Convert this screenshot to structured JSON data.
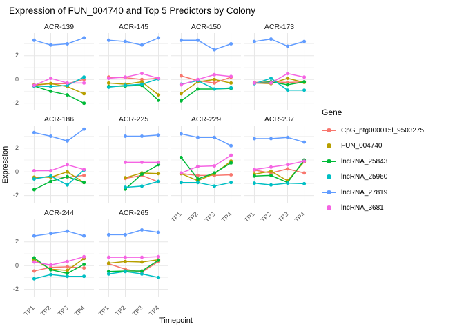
{
  "title": "Expression of FUN_004740 and Top 5 Predictors by Colony",
  "axes": {
    "x_title": "Timepoint",
    "y_title": "Expression",
    "x_ticks": [
      "TP1",
      "TP2",
      "TP3",
      "TP4"
    ],
    "y_ticks": [
      2,
      0,
      -2
    ]
  },
  "legend": {
    "title": "Gene"
  },
  "chart_data": {
    "type": "line",
    "title": "Expression of FUN_004740 and Top 5 Predictors by Colony",
    "xlabel": "Timepoint",
    "ylabel": "Expression",
    "x": [
      "TP1",
      "TP2",
      "TP3",
      "TP4"
    ],
    "ylim": [
      -2.6,
      3.9
    ],
    "y_breaks": [
      -2,
      0,
      2
    ],
    "y_minor_breaks": [
      -1,
      1,
      3
    ],
    "grid": true,
    "legend_position": "right",
    "legend_title": "Gene",
    "series": [
      {
        "name": "CpG_ptg000015l_9503275",
        "color": "#F8766D"
      },
      {
        "name": "FUN_004740",
        "color": "#B79F00"
      },
      {
        "name": "lncRNA_25843",
        "color": "#00BA38"
      },
      {
        "name": "lncRNA_25960",
        "color": "#00BFC4"
      },
      {
        "name": "lncRNA_27819",
        "color": "#619CFF"
      },
      {
        "name": "lncRNA_3681",
        "color": "#F564E3"
      }
    ],
    "facets": [
      {
        "colony": "ACR-139",
        "values": {
          "CpG_ptg000015l_9503275": [
            -0.5,
            -0.35,
            -0.35,
            0.0
          ],
          "FUN_004740": [
            -0.45,
            -0.35,
            -0.6,
            -1.2
          ],
          "lncRNA_25843": [
            -0.55,
            -1.0,
            -1.3,
            -2.0
          ],
          "lncRNA_25960": [
            -0.55,
            -0.6,
            -0.5,
            0.2
          ],
          "lncRNA_27819": [
            3.3,
            2.9,
            3.0,
            3.5
          ],
          "lncRNA_3681": [
            -0.5,
            0.1,
            -0.3,
            -0.3
          ]
        }
      },
      {
        "colony": "ACR-145",
        "values": {
          "CpG_ptg000015l_9503275": [
            0.2,
            0.15,
            0.0,
            0.1
          ],
          "FUN_004740": [
            -0.3,
            -0.4,
            -0.2,
            -1.3
          ],
          "lncRNA_25843": [
            -0.6,
            -0.55,
            -0.5,
            -1.75
          ],
          "lncRNA_25960": [
            -0.65,
            -0.5,
            -0.4,
            0.05
          ],
          "lncRNA_27819": [
            3.3,
            3.2,
            2.9,
            3.5
          ],
          "lncRNA_3681": [
            0.1,
            0.2,
            0.5,
            0.1
          ]
        }
      },
      {
        "colony": "ACR-150",
        "values": {
          "CpG_ptg000015l_9503275": [
            0.3,
            -0.1,
            -0.3,
            0.2
          ],
          "FUN_004740": [
            -1.2,
            -0.2,
            0.0,
            -0.3
          ],
          "lncRNA_25843": [
            -1.8,
            -0.8,
            -0.8,
            -0.75
          ],
          "lncRNA_25960": [
            -0.4,
            -0.1,
            -0.8,
            -0.7
          ],
          "lncRNA_27819": [
            3.3,
            3.3,
            2.5,
            3.0
          ],
          "lncRNA_3681": [
            -0.45,
            0.0,
            0.4,
            0.25
          ]
        }
      },
      {
        "colony": "ACR-173",
        "values": {
          "CpG_ptg000015l_9503275": [
            -0.25,
            -0.2,
            -0.25,
            -0.2
          ],
          "FUN_004740": [
            -0.3,
            -0.35,
            0.1,
            -0.25
          ],
          "lncRNA_25843": [
            -0.3,
            -0.2,
            -0.45,
            -0.2
          ],
          "lncRNA_25960": [
            -0.35,
            0.1,
            -0.9,
            -0.9
          ],
          "lncRNA_27819": [
            3.2,
            3.4,
            2.8,
            3.2
          ],
          "lncRNA_3681": [
            -0.3,
            -0.3,
            0.5,
            0.2
          ]
        }
      },
      {
        "colony": "ACR-186",
        "values": {
          "CpG_ptg000015l_9503275": [
            -0.5,
            -0.4,
            -0.45,
            -0.3
          ],
          "FUN_004740": [
            -0.45,
            -0.45,
            0.0,
            -0.9
          ],
          "lncRNA_25843": [
            -1.5,
            -0.8,
            -0.4,
            -0.9
          ],
          "lncRNA_25960": [
            -0.6,
            -0.35,
            -1.1,
            0.15
          ],
          "lncRNA_27819": [
            3.3,
            3.0,
            2.6,
            3.6
          ],
          "lncRNA_3681": [
            0.1,
            0.1,
            0.6,
            0.2
          ]
        }
      },
      {
        "colony": "ACR-225",
        "values": {
          "CpG_ptg000015l_9503275": [
            null,
            -0.55,
            -0.3,
            -0.85
          ],
          "FUN_004740": [
            null,
            -0.5,
            -0.1,
            -0.15
          ],
          "lncRNA_25843": [
            null,
            -1.45,
            -0.2,
            0.6
          ],
          "lncRNA_25960": [
            null,
            -1.3,
            -1.2,
            -0.8
          ],
          "lncRNA_27819": [
            null,
            3.0,
            3.0,
            3.1
          ],
          "lncRNA_3681": [
            null,
            0.8,
            0.8,
            0.8
          ]
        }
      },
      {
        "colony": "ACR-229",
        "values": {
          "CpG_ptg000015l_9503275": [
            -0.15,
            -0.3,
            -0.3,
            -0.25
          ],
          "FUN_004740": [
            -0.15,
            -0.75,
            -0.15,
            0.9
          ],
          "lncRNA_25843": [
            1.2,
            -0.6,
            -0.1,
            0.75
          ],
          "lncRNA_25960": [
            -0.9,
            -0.9,
            -1.2,
            -0.9
          ],
          "lncRNA_27819": [
            3.2,
            2.9,
            2.9,
            2.2
          ],
          "lncRNA_3681": [
            -0.1,
            0.45,
            0.5,
            1.4
          ]
        }
      },
      {
        "colony": "ACR-237",
        "values": {
          "CpG_ptg000015l_9503275": [
            0.15,
            -0.1,
            0.25,
            -0.1
          ],
          "FUN_004740": [
            -0.2,
            0.05,
            -0.75,
            0.85
          ],
          "lncRNA_25843": [
            -0.35,
            -0.3,
            -0.9,
            1.0
          ],
          "lncRNA_25960": [
            -0.95,
            -1.1,
            -0.95,
            -1.0
          ],
          "lncRNA_27819": [
            2.8,
            2.8,
            2.9,
            2.5
          ],
          "lncRNA_3681": [
            0.2,
            0.4,
            0.6,
            0.9
          ]
        }
      },
      {
        "colony": "ACR-244",
        "values": {
          "CpG_ptg000015l_9503275": [
            -0.45,
            -0.15,
            -0.1,
            -0.2
          ],
          "FUN_004740": [
            0.5,
            -0.3,
            -0.4,
            0.6
          ],
          "lncRNA_25843": [
            0.65,
            -0.35,
            -0.65,
            0.1
          ],
          "lncRNA_25960": [
            -1.1,
            -0.75,
            -0.9,
            -0.9
          ],
          "lncRNA_27819": [
            2.5,
            2.7,
            2.9,
            2.5
          ],
          "lncRNA_3681": [
            0.3,
            0.05,
            0.35,
            0.75
          ]
        }
      },
      {
        "colony": "ACR-265",
        "values": {
          "CpG_ptg000015l_9503275": [
            0.15,
            -0.3,
            -0.55,
            0.35
          ],
          "FUN_004740": [
            0.2,
            0.35,
            0.3,
            0.5
          ],
          "lncRNA_25843": [
            -0.5,
            -0.45,
            -0.45,
            0.45
          ],
          "lncRNA_25960": [
            -0.7,
            -0.5,
            -0.7,
            -1.0
          ],
          "lncRNA_27819": [
            2.6,
            2.6,
            3.0,
            2.8
          ],
          "lncRNA_3681": [
            0.7,
            0.7,
            0.7,
            0.75
          ]
        }
      }
    ],
    "colors": {
      "grid_major": "#e7e7e7",
      "grid_minor": "#f3f3f3",
      "axis_text": "#4d4d4d",
      "background": "#ffffff"
    }
  }
}
